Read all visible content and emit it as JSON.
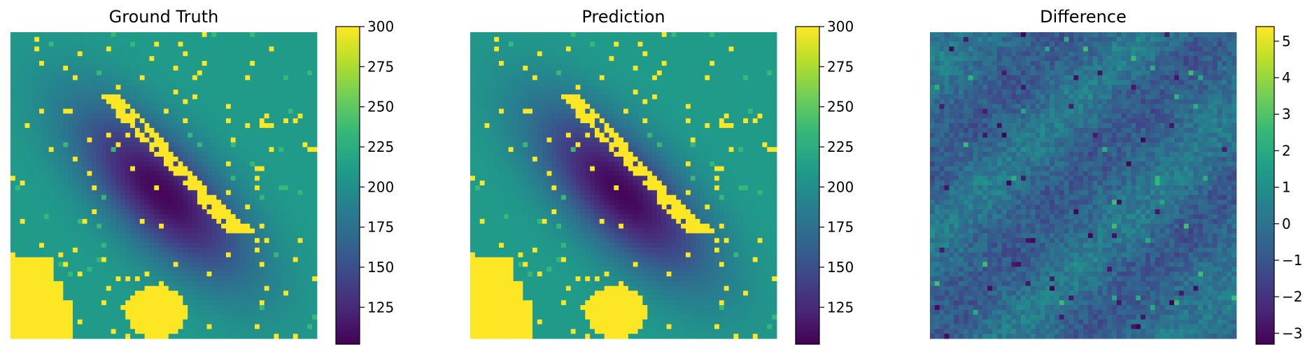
{
  "chart_data": [
    {
      "type": "heatmap",
      "title": "Ground Truth",
      "grid_size": [
        64,
        64
      ],
      "colormap": "viridis",
      "colorbar": {
        "range": [
          102,
          300
        ],
        "ticks": [
          125,
          150,
          175,
          200,
          225,
          250,
          275,
          300
        ]
      },
      "features": {
        "background": 210,
        "depression_min": 105,
        "depression_center": [
          33,
          31
        ],
        "high_patch_value": 300
      }
    },
    {
      "type": "heatmap",
      "title": "Prediction",
      "grid_size": [
        64,
        64
      ],
      "colormap": "viridis",
      "colorbar": {
        "range": [
          102,
          300
        ],
        "ticks": [
          125,
          150,
          175,
          200,
          225,
          250,
          275,
          300
        ]
      },
      "features": {
        "background": 210,
        "depression_min": 105,
        "depression_center": [
          33,
          31
        ],
        "high_patch_value": 300
      }
    },
    {
      "type": "heatmap",
      "title": "Difference",
      "grid_size": [
        64,
        64
      ],
      "colormap": "viridis",
      "colorbar": {
        "range": [
          -3.3,
          5.4
        ],
        "ticks": [
          -3,
          -2,
          -1,
          0,
          1,
          2,
          3,
          4,
          5
        ]
      },
      "features": {
        "typical_range": [
          -1.5,
          1.5
        ],
        "min": -3.3,
        "max": 5.4
      }
    }
  ],
  "colors": {
    "viridis": [
      "#440154",
      "#482878",
      "#3e4989",
      "#31688e",
      "#26828e",
      "#1f9e89",
      "#35b779",
      "#6ece58",
      "#b5de2b",
      "#fde725"
    ]
  }
}
